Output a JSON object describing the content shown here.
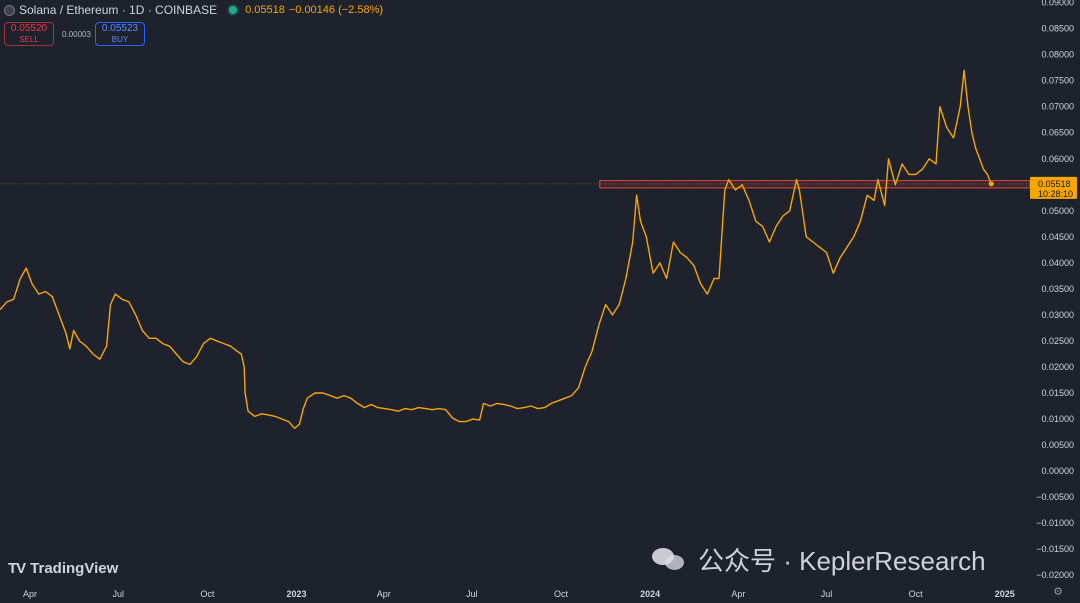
{
  "header": {
    "symbol": "Solana / Ethereum · 1D · COINBASE",
    "last": "0.05518",
    "change": "−0.00146 (−2.58%)"
  },
  "sell": {
    "value": "0.05520",
    "label": "SELL"
  },
  "buy": {
    "value": "0.05523",
    "label": "BUY"
  },
  "spread": "0.00003",
  "brand": "TradingView",
  "watermark": "公众号 · KeplerResearch",
  "price_label": {
    "price": "0.05518",
    "countdown": "10:28:10"
  },
  "colors": {
    "line": "#f7a600",
    "zone": "#e0483d",
    "background": "#1e222d"
  },
  "icons": {
    "logo": "tradingview-logo-icon",
    "settings": "settings-icon",
    "live": "live-status-icon"
  },
  "chart_data": {
    "type": "line",
    "title": "Solana / Ethereum · 1D · COINBASE",
    "xlabel": "",
    "ylabel": "",
    "y_axis_side": "right",
    "ylim": [
      -0.0215,
      0.0905
    ],
    "yticks": [
      "0.09000",
      "0.08500",
      "0.08000",
      "0.07500",
      "0.07000",
      "0.06500",
      "0.06000",
      "0.05500",
      "0.05000",
      "0.04500",
      "0.04000",
      "0.03500",
      "0.03000",
      "0.02500",
      "0.02000",
      "0.01500",
      "0.01000",
      "0.00500",
      "0.00000",
      "−0.00500",
      "−0.01000",
      "−0.01500",
      "−0.02000"
    ],
    "ytick_values": [
      0.09,
      0.085,
      0.08,
      0.075,
      0.07,
      0.065,
      0.06,
      0.055,
      0.05,
      0.045,
      0.04,
      0.035,
      0.03,
      0.025,
      0.02,
      0.015,
      0.01,
      0.005,
      0.0,
      -0.005,
      -0.01,
      -0.015,
      -0.02
    ],
    "xticks": [
      {
        "label": "Apr",
        "date": "2022-04-01"
      },
      {
        "label": "Jul",
        "date": "2022-07-01"
      },
      {
        "label": "Oct",
        "date": "2022-10-01"
      },
      {
        "label": "2023",
        "date": "2023-01-01"
      },
      {
        "label": "Apr",
        "date": "2023-04-01"
      },
      {
        "label": "Jul",
        "date": "2023-07-01"
      },
      {
        "label": "Oct",
        "date": "2023-10-01"
      },
      {
        "label": "2024",
        "date": "2024-01-01"
      },
      {
        "label": "Apr",
        "date": "2024-04-01"
      },
      {
        "label": "Jul",
        "date": "2024-07-01"
      },
      {
        "label": "Oct",
        "date": "2024-10-01"
      },
      {
        "label": "2025",
        "date": "2025-01-01"
      }
    ],
    "xlim": [
      "2022-03-01",
      "2025-01-27"
    ],
    "current_price": 0.05518,
    "resistance_zone": {
      "from": "2023-11-10",
      "to": "2025-01-27",
      "low": 0.0544,
      "high": 0.0558
    },
    "series": [
      {
        "values": [
          [
            "2022-03-01",
            0.031
          ],
          [
            "2022-03-08",
            0.0325
          ],
          [
            "2022-03-15",
            0.033
          ],
          [
            "2022-03-22",
            0.037
          ],
          [
            "2022-03-28",
            0.039
          ],
          [
            "2022-04-03",
            0.036
          ],
          [
            "2022-04-10",
            0.034
          ],
          [
            "2022-04-17",
            0.0345
          ],
          [
            "2022-04-24",
            0.0335
          ],
          [
            "2022-05-01",
            0.03
          ],
          [
            "2022-05-08",
            0.0265
          ],
          [
            "2022-05-12",
            0.0235
          ],
          [
            "2022-05-16",
            0.027
          ],
          [
            "2022-05-22",
            0.025
          ],
          [
            "2022-05-29",
            0.024
          ],
          [
            "2022-06-05",
            0.0225
          ],
          [
            "2022-06-12",
            0.0215
          ],
          [
            "2022-06-19",
            0.024
          ],
          [
            "2022-06-23",
            0.032
          ],
          [
            "2022-06-28",
            0.034
          ],
          [
            "2022-07-05",
            0.033
          ],
          [
            "2022-07-12",
            0.0325
          ],
          [
            "2022-07-19",
            0.03
          ],
          [
            "2022-07-26",
            0.027
          ],
          [
            "2022-08-02",
            0.0255
          ],
          [
            "2022-08-09",
            0.0255
          ],
          [
            "2022-08-16",
            0.0245
          ],
          [
            "2022-08-23",
            0.024
          ],
          [
            "2022-08-30",
            0.0225
          ],
          [
            "2022-09-06",
            0.021
          ],
          [
            "2022-09-13",
            0.0205
          ],
          [
            "2022-09-20",
            0.022
          ],
          [
            "2022-09-27",
            0.0245
          ],
          [
            "2022-10-04",
            0.0255
          ],
          [
            "2022-10-11",
            0.025
          ],
          [
            "2022-10-18",
            0.0245
          ],
          [
            "2022-10-25",
            0.024
          ],
          [
            "2022-11-01",
            0.023
          ],
          [
            "2022-11-05",
            0.0225
          ],
          [
            "2022-11-08",
            0.02
          ],
          [
            "2022-11-09",
            0.015
          ],
          [
            "2022-11-12",
            0.0115
          ],
          [
            "2022-11-19",
            0.0105
          ],
          [
            "2022-11-26",
            0.011
          ],
          [
            "2022-12-03",
            0.0108
          ],
          [
            "2022-12-10",
            0.0105
          ],
          [
            "2022-12-17",
            0.01
          ],
          [
            "2022-12-24",
            0.0095
          ],
          [
            "2022-12-30",
            0.0082
          ],
          [
            "2023-01-04",
            0.009
          ],
          [
            "2023-01-08",
            0.012
          ],
          [
            "2023-01-12",
            0.014
          ],
          [
            "2023-01-20",
            0.015
          ],
          [
            "2023-01-28",
            0.015
          ],
          [
            "2023-02-05",
            0.0145
          ],
          [
            "2023-02-12",
            0.014
          ],
          [
            "2023-02-19",
            0.0145
          ],
          [
            "2023-02-26",
            0.014
          ],
          [
            "2023-03-05",
            0.013
          ],
          [
            "2023-03-12",
            0.0122
          ],
          [
            "2023-03-19",
            0.0128
          ],
          [
            "2023-03-26",
            0.0122
          ],
          [
            "2023-04-02",
            0.012
          ],
          [
            "2023-04-09",
            0.0118
          ],
          [
            "2023-04-16",
            0.0115
          ],
          [
            "2023-04-23",
            0.012
          ],
          [
            "2023-04-30",
            0.0118
          ],
          [
            "2023-05-07",
            0.0122
          ],
          [
            "2023-05-14",
            0.012
          ],
          [
            "2023-05-21",
            0.0118
          ],
          [
            "2023-05-28",
            0.012
          ],
          [
            "2023-06-04",
            0.0118
          ],
          [
            "2023-06-11",
            0.0102
          ],
          [
            "2023-06-18",
            0.0095
          ],
          [
            "2023-06-25",
            0.0095
          ],
          [
            "2023-07-02",
            0.01
          ],
          [
            "2023-07-09",
            0.0098
          ],
          [
            "2023-07-13",
            0.013
          ],
          [
            "2023-07-20",
            0.0125
          ],
          [
            "2023-07-27",
            0.013
          ],
          [
            "2023-08-03",
            0.0128
          ],
          [
            "2023-08-10",
            0.0125
          ],
          [
            "2023-08-17",
            0.012
          ],
          [
            "2023-08-24",
            0.0122
          ],
          [
            "2023-08-31",
            0.0125
          ],
          [
            "2023-09-07",
            0.012
          ],
          [
            "2023-09-14",
            0.0122
          ],
          [
            "2023-09-21",
            0.013
          ],
          [
            "2023-09-28",
            0.0135
          ],
          [
            "2023-10-05",
            0.014
          ],
          [
            "2023-10-12",
            0.0145
          ],
          [
            "2023-10-19",
            0.016
          ],
          [
            "2023-10-26",
            0.02
          ],
          [
            "2023-11-02",
            0.023
          ],
          [
            "2023-11-09",
            0.028
          ],
          [
            "2023-11-16",
            0.032
          ],
          [
            "2023-11-23",
            0.03
          ],
          [
            "2023-11-30",
            0.032
          ],
          [
            "2023-12-07",
            0.037
          ],
          [
            "2023-12-14",
            0.044
          ],
          [
            "2023-12-18",
            0.053
          ],
          [
            "2023-12-22",
            0.048
          ],
          [
            "2023-12-28",
            0.045
          ],
          [
            "2024-01-04",
            0.038
          ],
          [
            "2024-01-11",
            0.04
          ],
          [
            "2024-01-18",
            0.037
          ],
          [
            "2024-01-25",
            0.044
          ],
          [
            "2024-02-01",
            0.042
          ],
          [
            "2024-02-08",
            0.041
          ],
          [
            "2024-02-15",
            0.0395
          ],
          [
            "2024-02-22",
            0.036
          ],
          [
            "2024-02-29",
            0.034
          ],
          [
            "2024-03-07",
            0.037
          ],
          [
            "2024-03-12",
            0.037
          ],
          [
            "2024-03-18",
            0.054
          ],
          [
            "2024-03-22",
            0.056
          ],
          [
            "2024-03-29",
            0.054
          ],
          [
            "2024-04-05",
            0.055
          ],
          [
            "2024-04-12",
            0.052
          ],
          [
            "2024-04-19",
            0.048
          ],
          [
            "2024-04-26",
            0.047
          ],
          [
            "2024-05-03",
            0.044
          ],
          [
            "2024-05-10",
            0.047
          ],
          [
            "2024-05-17",
            0.049
          ],
          [
            "2024-05-24",
            0.05
          ],
          [
            "2024-05-31",
            0.056
          ],
          [
            "2024-06-03",
            0.054
          ],
          [
            "2024-06-10",
            0.045
          ],
          [
            "2024-06-17",
            0.044
          ],
          [
            "2024-06-24",
            0.043
          ],
          [
            "2024-07-01",
            0.042
          ],
          [
            "2024-07-08",
            0.038
          ],
          [
            "2024-07-15",
            0.041
          ],
          [
            "2024-07-22",
            0.043
          ],
          [
            "2024-07-29",
            0.045
          ],
          [
            "2024-08-05",
            0.048
          ],
          [
            "2024-08-12",
            0.053
          ],
          [
            "2024-08-19",
            0.052
          ],
          [
            "2024-08-23",
            0.056
          ],
          [
            "2024-08-30",
            0.051
          ],
          [
            "2024-09-03",
            0.06
          ],
          [
            "2024-09-10",
            0.055
          ],
          [
            "2024-09-17",
            0.059
          ],
          [
            "2024-09-24",
            0.057
          ],
          [
            "2024-10-01",
            0.057
          ],
          [
            "2024-10-08",
            0.058
          ],
          [
            "2024-10-15",
            0.06
          ],
          [
            "2024-10-22",
            0.059
          ],
          [
            "2024-10-26",
            0.07
          ],
          [
            "2024-11-02",
            0.066
          ],
          [
            "2024-11-09",
            0.064
          ],
          [
            "2024-11-16",
            0.07
          ],
          [
            "2024-11-20",
            0.077
          ],
          [
            "2024-11-24",
            0.07
          ],
          [
            "2024-11-28",
            0.065
          ],
          [
            "2024-12-02",
            0.062
          ],
          [
            "2024-12-06",
            0.06
          ],
          [
            "2024-12-10",
            0.058
          ],
          [
            "2024-12-14",
            0.057
          ],
          [
            "2024-12-18",
            0.05518
          ]
        ]
      }
    ]
  }
}
